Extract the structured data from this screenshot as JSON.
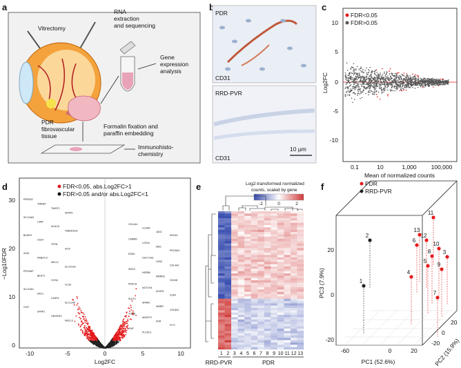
{
  "panels": {
    "a": {
      "label": "a",
      "vitrectomy": "Vitrectomy",
      "rna_line1": "RNA",
      "rna_line2": "extraction",
      "rna_line3": "and sequencing",
      "gene_line1": "Gene",
      "gene_line2": "expression",
      "gene_line3": "analysis",
      "pdr_line1": "PDR",
      "pdr_line2": "fibrovascular",
      "pdr_line3": "tissue",
      "formalin_line1": "Formalin fixation and",
      "formalin_line2": "paraffin embedding",
      "immuno_line1": "Immunohisto-",
      "immuno_line2": "chemistry"
    },
    "b": {
      "label": "b",
      "top_title": "PDR",
      "top_stain": "CD31",
      "bottom_title": "RRD-PVR",
      "bottom_stain": "CD31",
      "scale_bar": "10 μm"
    },
    "c": {
      "label": "c",
      "legend": [
        "FDR<0.05",
        "FDR>0.05"
      ],
      "ylabel": "Log2FC",
      "xlabel": "Mean of normalized counts",
      "xticks": [
        "0.1",
        "10",
        "1,000",
        "100,000"
      ],
      "yticks": [
        "-10",
        "-5",
        "0",
        "5",
        "10"
      ]
    },
    "d": {
      "label": "d",
      "legend": [
        "FDR<0.05, abs.Log2FC>1",
        "FDR>0.05 and/or abs.Log2FC<1"
      ],
      "ylabel": "−Log10FDR",
      "xlabel": "Log2FC",
      "xticks": [
        "-10",
        "-5",
        "0",
        "5",
        "10"
      ],
      "yticks": [
        "0",
        "10",
        "20",
        "30"
      ],
      "genes_left": [
        "PRSS33",
        "TMEM4",
        "TWIST1",
        "SFRP5",
        "SLC44A3",
        "LMAT",
        "ACACA",
        "TMEM151A",
        "BLMPH",
        "CD24",
        "TFRN",
        "SGTI",
        "ZAS1",
        "RAB27L2",
        "NELL2",
        "SLCO1A2",
        "PROSAP",
        "BEST1",
        "CHGA",
        "CLYB",
        "SLC16A1",
        "DKK1",
        "CASP4",
        "SLC12A9",
        "CHIT",
        "SFRP1",
        "GENP4F1",
        "KBCC3"
      ],
      "genes_right": [
        "COL4A1",
        "CLDN5",
        "JAG1",
        "RGS15",
        "CARMN",
        "LCE34",
        "NID1",
        "PECAM1",
        "ESM1",
        "GUCY1A3",
        "CD93",
        "COL4A2",
        "SNCG",
        "HSPB8",
        "MMRN2",
        "CD248",
        "PRKCH",
        "NOTCH4",
        "ACKR1",
        "GJA4",
        "SULF1",
        "SPARC",
        "INSRR",
        "COL8A1",
        "TGFBI",
        "ANGPT2",
        "KDR",
        "FLT1",
        "VWF",
        "PLXDC1"
      ]
    },
    "e": {
      "label": "e",
      "legend_title_line1": "Log2-transformed normalized",
      "legend_title_line2": "counts, scaled by gene",
      "legend_ticks": [
        "-2",
        "0",
        "2"
      ],
      "colors": {
        "low": "#3a4fb0",
        "mid": "#ffffff",
        "high": "#d03a3a"
      },
      "sample_numbers": [
        "1",
        "2",
        "3",
        "4",
        "5",
        "6",
        "7",
        "8",
        "9",
        "10",
        "11",
        "12",
        "13"
      ],
      "group_rrd": "RRD-PVR",
      "group_pdr": "PDR"
    },
    "f": {
      "label": "f",
      "legend": [
        "PDR",
        "RRD-PVR"
      ],
      "pc1_label": "PC1 (52.6%)",
      "pc2_label": "PC2 (15.9%)",
      "pc3_label": "PC3 (7.9%)",
      "pc1_ticks": [
        "-60",
        "0",
        "20"
      ],
      "pc2_ticks": [
        "-20",
        "0",
        "20"
      ],
      "pc3_ticks": [
        "-20",
        "0",
        "20"
      ],
      "points": [
        {
          "id": "1",
          "group": "RRD-PVR"
        },
        {
          "id": "2",
          "group": "RRD-PVR"
        },
        {
          "id": "3",
          "group": "PDR"
        },
        {
          "id": "4",
          "group": "PDR"
        },
        {
          "id": "5",
          "group": "PDR"
        },
        {
          "id": "6",
          "group": "PDR"
        },
        {
          "id": "7",
          "group": "PDR"
        },
        {
          "id": "8",
          "group": "PDR"
        },
        {
          "id": "9",
          "group": "PDR"
        },
        {
          "id": "10",
          "group": "PDR"
        },
        {
          "id": "11",
          "group": "PDR"
        },
        {
          "id": "12",
          "group": "PDR"
        },
        {
          "id": "13",
          "group": "PDR"
        }
      ]
    }
  },
  "colors": {
    "red": "#e41a1c",
    "black": "#222222",
    "grey": "#555555"
  }
}
